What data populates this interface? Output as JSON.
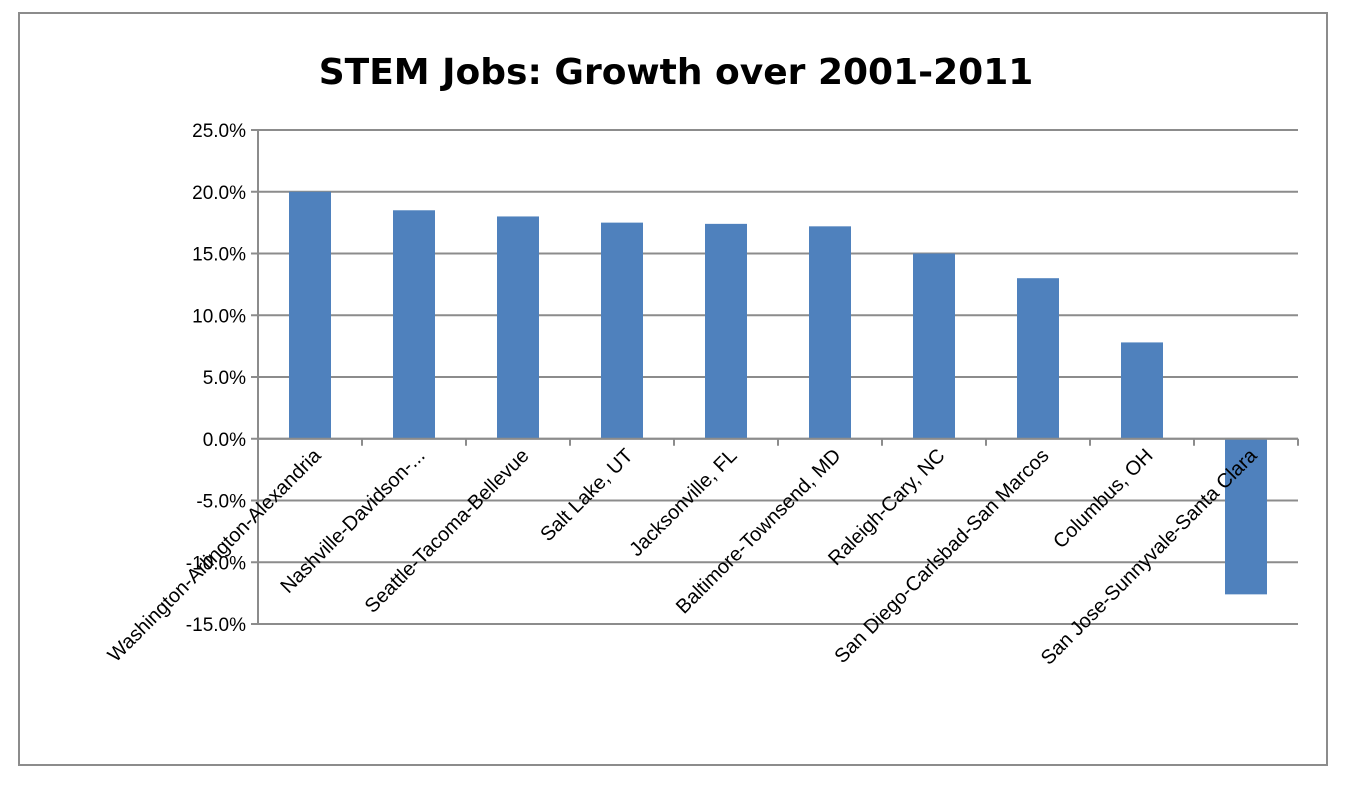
{
  "chart_data": {
    "type": "bar",
    "title": "STEM Jobs: Growth over 2001-2011",
    "xlabel": "",
    "ylabel": "",
    "categories": [
      "Washington-Arlington-Alexandria",
      "Nashville-Davidson-...",
      "Seattle-Tacoma-Bellevue",
      "Salt Lake, UT",
      "Jacksonville, FL",
      "Baltimore-Townsend, MD",
      "Raleigh-Cary, NC",
      "San Diego-Carlsbad-San Marcos",
      "Columbus, OH",
      "San Jose-Sunnyvale-Santa Clara"
    ],
    "values": [
      20.0,
      18.5,
      18.0,
      17.5,
      17.4,
      17.2,
      15.0,
      13.0,
      7.8,
      -12.6
    ],
    "ylim": [
      -15,
      25
    ],
    "yticks": [
      25,
      20,
      15,
      10,
      5,
      0,
      -5,
      -10,
      -15
    ],
    "ytick_labels": [
      "25.0%",
      "20.0%",
      "15.0%",
      "10.0%",
      "5.0%",
      "0.0%",
      "-5.0%",
      "-10.0%",
      "-15.0%"
    ],
    "grid": true,
    "legend": "none",
    "bar_color": "#4f81bd",
    "grid_color": "#8c8c8c"
  }
}
